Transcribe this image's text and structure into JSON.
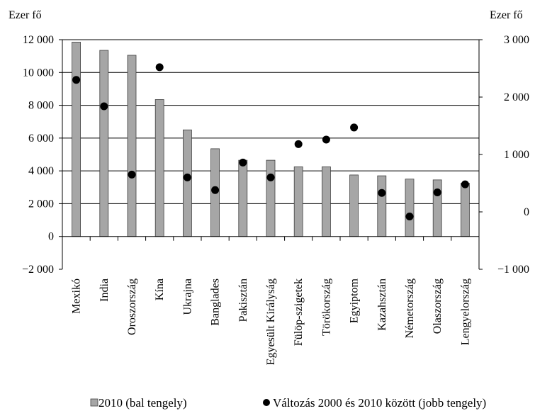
{
  "chart_data": {
    "type": "bar",
    "left_unit": "Ezer fő",
    "right_unit": "Ezer fő",
    "categories": [
      "Mexikó",
      "India",
      "Oroszország",
      "Kína",
      "Ukrajna",
      "Banglades",
      "Pakisztán",
      "Egyesült Királyság",
      "Fülöp-szigetek",
      "Törökország",
      "Egyiptom",
      "Kazahsztán",
      "Németország",
      "Olaszország",
      "Lengyelország"
    ],
    "series": [
      {
        "name": "2010 (bal tengely)",
        "type": "bar",
        "axis": "left",
        "color": "#a6a6a6",
        "values": [
          11850,
          11350,
          11050,
          8350,
          6500,
          5350,
          4650,
          4650,
          4250,
          4250,
          3750,
          3700,
          3500,
          3450,
          3250
        ]
      },
      {
        "name": "Változás 2000 és 2010 között (jobb tengely)",
        "type": "scatter",
        "axis": "right",
        "color": "#000000",
        "values": [
          2300,
          1840,
          650,
          2520,
          600,
          380,
          860,
          600,
          1180,
          1260,
          1470,
          330,
          -80,
          340,
          480
        ]
      }
    ],
    "left_axis": {
      "min": -2000,
      "max": 12000,
      "ticks": [
        -2000,
        0,
        2000,
        4000,
        6000,
        8000,
        10000,
        12000
      ],
      "tick_labels": [
        "−2 000",
        "0",
        "2 000",
        "4 000",
        "6 000",
        "8 000",
        "10 000",
        "12 000"
      ]
    },
    "right_axis": {
      "min": -1000,
      "max": 3000,
      "ticks": [
        -1000,
        0,
        1000,
        2000,
        3000
      ],
      "tick_labels": [
        "−1 000",
        "0",
        "1 000",
        "2 000",
        "3 000"
      ]
    },
    "grid": true,
    "legend_position": "bottom"
  }
}
